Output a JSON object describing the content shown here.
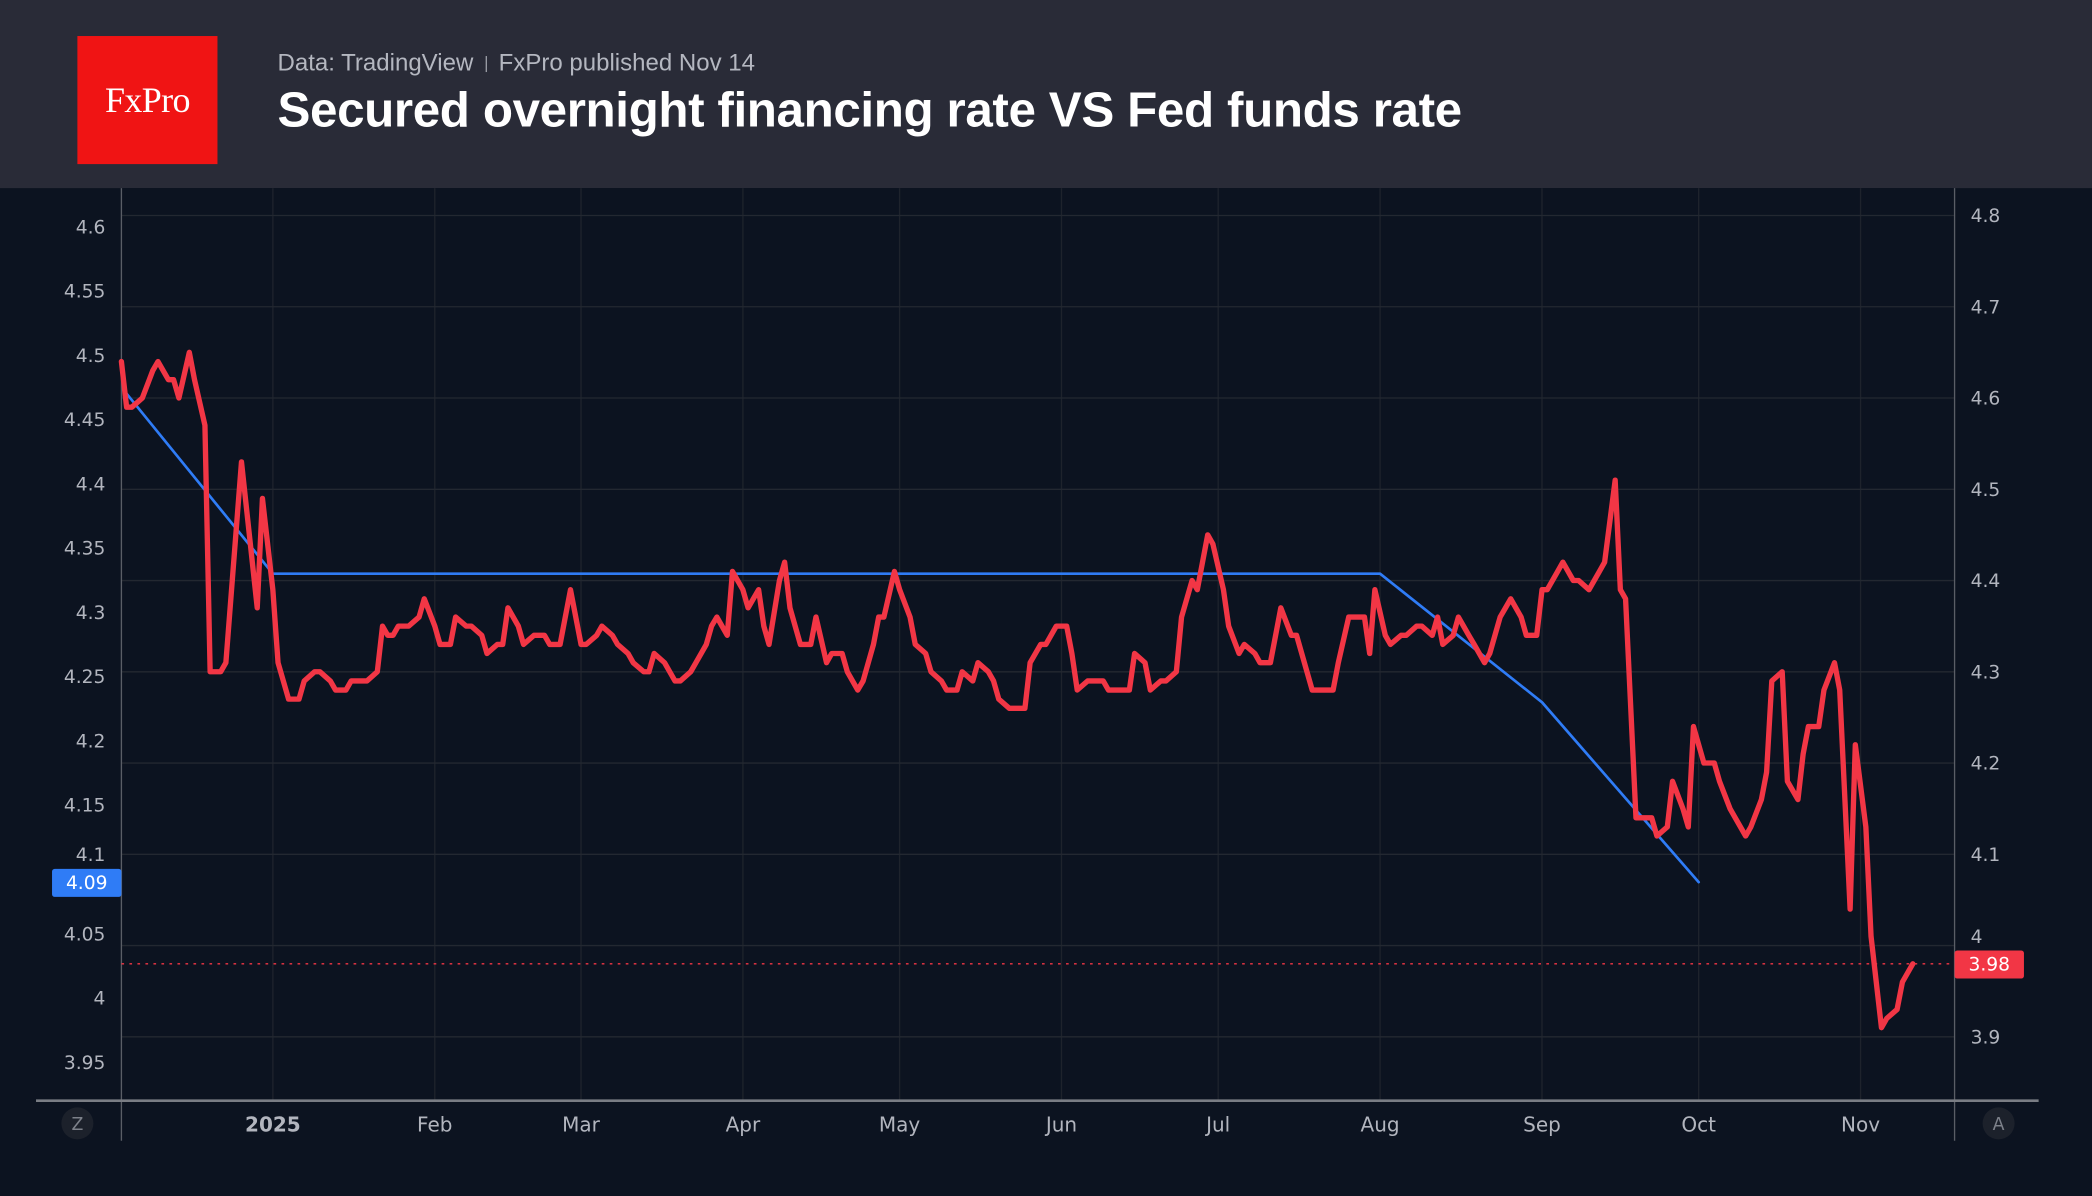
{
  "header": {
    "logo_text": "FxPro",
    "source": "Data: TradingView",
    "publisher": "FxPro published Nov 14",
    "title": "Secured overnight financing rate VS Fed funds rate"
  },
  "controls": {
    "left_button": "Z",
    "right_button": "A"
  },
  "chart_data": {
    "type": "line",
    "title": "Secured overnight financing rate VS Fed funds rate",
    "grid": true,
    "legend": "none",
    "xlim": [
      "2024-12-03",
      "2025-11-19"
    ],
    "x_ticks": [
      {
        "date": "2025-01-01",
        "label": "2025",
        "bold": true
      },
      {
        "date": "2025-02-01",
        "label": "Feb"
      },
      {
        "date": "2025-03-01",
        "label": "Mar"
      },
      {
        "date": "2025-04-01",
        "label": "Apr"
      },
      {
        "date": "2025-05-01",
        "label": "May"
      },
      {
        "date": "2025-06-01",
        "label": "Jun"
      },
      {
        "date": "2025-07-01",
        "label": "Jul"
      },
      {
        "date": "2025-08-01",
        "label": "Aug"
      },
      {
        "date": "2025-09-01",
        "label": "Sep"
      },
      {
        "date": "2025-10-01",
        "label": "Oct"
      },
      {
        "date": "2025-11-01",
        "label": "Nov"
      }
    ],
    "left_axis": {
      "range": [
        3.92,
        4.63
      ],
      "ticks": [
        "4.6",
        "4.55",
        "4.5",
        "4.45",
        "4.4",
        "4.35",
        "4.3",
        "4.25",
        "4.2",
        "4.15",
        "4.1",
        "4.05",
        "4",
        "3.95"
      ]
    },
    "right_axis": {
      "range": [
        3.83,
        4.83
      ],
      "ticks": [
        "4.8",
        "4.7",
        "4.6",
        "4.5",
        "4.4",
        "4.3",
        "4.2",
        "4.1",
        "4",
        "3.9"
      ]
    },
    "series": [
      {
        "axis": "left",
        "color": "#2f7cf6",
        "last_value_label": "4.09",
        "last_value": 4.09,
        "points": [
          [
            "2024-12-04",
            4.47
          ],
          [
            "2025-01-01",
            4.33
          ],
          [
            "2025-08-01",
            4.33
          ],
          [
            "2025-09-01",
            4.23
          ],
          [
            "2025-10-01",
            4.09
          ]
        ]
      },
      {
        "axis": "right",
        "color": "#f23645",
        "last_value_label": "3.98",
        "last_value": 3.98,
        "points": [
          [
            "2024-12-03",
            4.64
          ],
          [
            "2024-12-04",
            4.59
          ],
          [
            "2024-12-05",
            4.59
          ],
          [
            "2024-12-07",
            4.6
          ],
          [
            "2024-12-09",
            4.63
          ],
          [
            "2024-12-10",
            4.64
          ],
          [
            "2024-12-12",
            4.62
          ],
          [
            "2024-12-13",
            4.62
          ],
          [
            "2024-12-14",
            4.6
          ],
          [
            "2024-12-16",
            4.65
          ],
          [
            "2024-12-17",
            4.62
          ],
          [
            "2024-12-19",
            4.57
          ],
          [
            "2024-12-20",
            4.3
          ],
          [
            "2024-12-22",
            4.3
          ],
          [
            "2024-12-23",
            4.31
          ],
          [
            "2024-12-26",
            4.53
          ],
          [
            "2024-12-29",
            4.37
          ],
          [
            "2024-12-30",
            4.49
          ],
          [
            "2025-01-01",
            4.39
          ],
          [
            "2025-01-02",
            4.31
          ],
          [
            "2025-01-04",
            4.27
          ],
          [
            "2025-01-06",
            4.27
          ],
          [
            "2025-01-07",
            4.29
          ],
          [
            "2025-01-09",
            4.3
          ],
          [
            "2025-01-10",
            4.3
          ],
          [
            "2025-01-12",
            4.29
          ],
          [
            "2025-01-13",
            4.28
          ],
          [
            "2025-01-15",
            4.28
          ],
          [
            "2025-01-16",
            4.29
          ],
          [
            "2025-01-18",
            4.29
          ],
          [
            "2025-01-19",
            4.29
          ],
          [
            "2025-01-21",
            4.3
          ],
          [
            "2025-01-22",
            4.35
          ],
          [
            "2025-01-23",
            4.34
          ],
          [
            "2025-01-24",
            4.34
          ],
          [
            "2025-01-25",
            4.35
          ],
          [
            "2025-01-27",
            4.35
          ],
          [
            "2025-01-29",
            4.36
          ],
          [
            "2025-01-30",
            4.38
          ],
          [
            "2025-02-01",
            4.35
          ],
          [
            "2025-02-02",
            4.33
          ],
          [
            "2025-02-04",
            4.33
          ],
          [
            "2025-02-05",
            4.36
          ],
          [
            "2025-02-07",
            4.35
          ],
          [
            "2025-02-08",
            4.35
          ],
          [
            "2025-02-10",
            4.34
          ],
          [
            "2025-02-11",
            4.32
          ],
          [
            "2025-02-13",
            4.33
          ],
          [
            "2025-02-14",
            4.33
          ],
          [
            "2025-02-15",
            4.37
          ],
          [
            "2025-02-17",
            4.35
          ],
          [
            "2025-02-18",
            4.33
          ],
          [
            "2025-02-20",
            4.34
          ],
          [
            "2025-02-22",
            4.34
          ],
          [
            "2025-02-23",
            4.33
          ],
          [
            "2025-02-25",
            4.33
          ],
          [
            "2025-02-26",
            4.36
          ],
          [
            "2025-02-27",
            4.39
          ],
          [
            "2025-03-01",
            4.33
          ],
          [
            "2025-03-02",
            4.33
          ],
          [
            "2025-03-04",
            4.34
          ],
          [
            "2025-03-05",
            4.35
          ],
          [
            "2025-03-07",
            4.34
          ],
          [
            "2025-03-08",
            4.33
          ],
          [
            "2025-03-10",
            4.32
          ],
          [
            "2025-03-11",
            4.31
          ],
          [
            "2025-03-13",
            4.3
          ],
          [
            "2025-03-14",
            4.3
          ],
          [
            "2025-03-15",
            4.32
          ],
          [
            "2025-03-17",
            4.31
          ],
          [
            "2025-03-19",
            4.29
          ],
          [
            "2025-03-20",
            4.29
          ],
          [
            "2025-03-22",
            4.3
          ],
          [
            "2025-03-23",
            4.31
          ],
          [
            "2025-03-25",
            4.33
          ],
          [
            "2025-03-26",
            4.35
          ],
          [
            "2025-03-27",
            4.36
          ],
          [
            "2025-03-29",
            4.34
          ],
          [
            "2025-03-30",
            4.41
          ],
          [
            "2025-04-01",
            4.39
          ],
          [
            "2025-04-02",
            4.37
          ],
          [
            "2025-04-04",
            4.39
          ],
          [
            "2025-04-05",
            4.35
          ],
          [
            "2025-04-06",
            4.33
          ],
          [
            "2025-04-08",
            4.4
          ],
          [
            "2025-04-09",
            4.42
          ],
          [
            "2025-04-10",
            4.37
          ],
          [
            "2025-04-12",
            4.33
          ],
          [
            "2025-04-14",
            4.33
          ],
          [
            "2025-04-15",
            4.36
          ],
          [
            "2025-04-17",
            4.31
          ],
          [
            "2025-04-18",
            4.32
          ],
          [
            "2025-04-20",
            4.32
          ],
          [
            "2025-04-21",
            4.3
          ],
          [
            "2025-04-23",
            4.28
          ],
          [
            "2025-04-24",
            4.29
          ],
          [
            "2025-04-26",
            4.33
          ],
          [
            "2025-04-27",
            4.36
          ],
          [
            "2025-04-28",
            4.36
          ],
          [
            "2025-04-30",
            4.41
          ],
          [
            "2025-05-01",
            4.39
          ],
          [
            "2025-05-03",
            4.36
          ],
          [
            "2025-05-04",
            4.33
          ],
          [
            "2025-05-06",
            4.32
          ],
          [
            "2025-05-07",
            4.3
          ],
          [
            "2025-05-09",
            4.29
          ],
          [
            "2025-05-10",
            4.28
          ],
          [
            "2025-05-12",
            4.28
          ],
          [
            "2025-05-13",
            4.3
          ],
          [
            "2025-05-15",
            4.29
          ],
          [
            "2025-05-16",
            4.31
          ],
          [
            "2025-05-18",
            4.3
          ],
          [
            "2025-05-19",
            4.29
          ],
          [
            "2025-05-20",
            4.27
          ],
          [
            "2025-05-22",
            4.26
          ],
          [
            "2025-05-23",
            4.26
          ],
          [
            "2025-05-25",
            4.26
          ],
          [
            "2025-05-26",
            4.31
          ],
          [
            "2025-05-28",
            4.33
          ],
          [
            "2025-05-29",
            4.33
          ],
          [
            "2025-05-31",
            4.35
          ],
          [
            "2025-06-02",
            4.35
          ],
          [
            "2025-06-03",
            4.32
          ],
          [
            "2025-06-04",
            4.28
          ],
          [
            "2025-06-06",
            4.29
          ],
          [
            "2025-06-07",
            4.29
          ],
          [
            "2025-06-09",
            4.29
          ],
          [
            "2025-06-10",
            4.28
          ],
          [
            "2025-06-12",
            4.28
          ],
          [
            "2025-06-14",
            4.28
          ],
          [
            "2025-06-15",
            4.32
          ],
          [
            "2025-06-17",
            4.31
          ],
          [
            "2025-06-18",
            4.28
          ],
          [
            "2025-06-20",
            4.29
          ],
          [
            "2025-06-21",
            4.29
          ],
          [
            "2025-06-23",
            4.3
          ],
          [
            "2025-06-24",
            4.36
          ],
          [
            "2025-06-26",
            4.4
          ],
          [
            "2025-06-27",
            4.39
          ],
          [
            "2025-06-29",
            4.45
          ],
          [
            "2025-06-30",
            4.44
          ],
          [
            "2025-07-02",
            4.39
          ],
          [
            "2025-07-03",
            4.35
          ],
          [
            "2025-07-05",
            4.32
          ],
          [
            "2025-07-06",
            4.33
          ],
          [
            "2025-07-08",
            4.32
          ],
          [
            "2025-07-09",
            4.31
          ],
          [
            "2025-07-11",
            4.31
          ],
          [
            "2025-07-12",
            4.34
          ],
          [
            "2025-07-13",
            4.37
          ],
          [
            "2025-07-15",
            4.34
          ],
          [
            "2025-07-16",
            4.34
          ],
          [
            "2025-07-18",
            4.3
          ],
          [
            "2025-07-19",
            4.28
          ],
          [
            "2025-07-21",
            4.28
          ],
          [
            "2025-07-23",
            4.28
          ],
          [
            "2025-07-24",
            4.31
          ],
          [
            "2025-07-26",
            4.36
          ],
          [
            "2025-07-27",
            4.36
          ],
          [
            "2025-07-29",
            4.36
          ],
          [
            "2025-07-30",
            4.32
          ],
          [
            "2025-07-31",
            4.39
          ],
          [
            "2025-08-02",
            4.34
          ],
          [
            "2025-08-03",
            4.33
          ],
          [
            "2025-08-05",
            4.34
          ],
          [
            "2025-08-06",
            4.34
          ],
          [
            "2025-08-08",
            4.35
          ],
          [
            "2025-08-09",
            4.35
          ],
          [
            "2025-08-11",
            4.34
          ],
          [
            "2025-08-12",
            4.36
          ],
          [
            "2025-08-13",
            4.33
          ],
          [
            "2025-08-15",
            4.34
          ],
          [
            "2025-08-16",
            4.36
          ],
          [
            "2025-08-18",
            4.34
          ],
          [
            "2025-08-19",
            4.33
          ],
          [
            "2025-08-21",
            4.31
          ],
          [
            "2025-08-22",
            4.32
          ],
          [
            "2025-08-24",
            4.36
          ],
          [
            "2025-08-25",
            4.37
          ],
          [
            "2025-08-26",
            4.38
          ],
          [
            "2025-08-28",
            4.36
          ],
          [
            "2025-08-29",
            4.34
          ],
          [
            "2025-08-31",
            4.34
          ],
          [
            "2025-09-01",
            4.39
          ],
          [
            "2025-09-02",
            4.39
          ],
          [
            "2025-09-04",
            4.41
          ],
          [
            "2025-09-05",
            4.42
          ],
          [
            "2025-09-07",
            4.4
          ],
          [
            "2025-09-08",
            4.4
          ],
          [
            "2025-09-10",
            4.39
          ],
          [
            "2025-09-12",
            4.41
          ],
          [
            "2025-09-13",
            4.42
          ],
          [
            "2025-09-15",
            4.51
          ],
          [
            "2025-09-16",
            4.39
          ],
          [
            "2025-09-17",
            4.38
          ],
          [
            "2025-09-19",
            4.14
          ],
          [
            "2025-09-20",
            4.14
          ],
          [
            "2025-09-22",
            4.14
          ],
          [
            "2025-09-23",
            4.12
          ],
          [
            "2025-09-25",
            4.13
          ],
          [
            "2025-09-26",
            4.18
          ],
          [
            "2025-09-28",
            4.15
          ],
          [
            "2025-09-29",
            4.13
          ],
          [
            "2025-09-30",
            4.24
          ],
          [
            "2025-10-02",
            4.2
          ],
          [
            "2025-10-04",
            4.2
          ],
          [
            "2025-10-05",
            4.18
          ],
          [
            "2025-10-07",
            4.15
          ],
          [
            "2025-10-08",
            4.14
          ],
          [
            "2025-10-10",
            4.12
          ],
          [
            "2025-10-11",
            4.13
          ],
          [
            "2025-10-13",
            4.16
          ],
          [
            "2025-10-14",
            4.19
          ],
          [
            "2025-10-15",
            4.29
          ],
          [
            "2025-10-17",
            4.3
          ],
          [
            "2025-10-18",
            4.18
          ],
          [
            "2025-10-20",
            4.16
          ],
          [
            "2025-10-21",
            4.21
          ],
          [
            "2025-10-22",
            4.24
          ],
          [
            "2025-10-24",
            4.24
          ],
          [
            "2025-10-25",
            4.28
          ],
          [
            "2025-10-27",
            4.31
          ],
          [
            "2025-10-28",
            4.28
          ],
          [
            "2025-10-30",
            4.04
          ],
          [
            "2025-10-31",
            4.22
          ],
          [
            "2025-11-02",
            4.13
          ],
          [
            "2025-11-03",
            4.01
          ],
          [
            "2025-11-05",
            3.91
          ],
          [
            "2025-11-06",
            3.92
          ],
          [
            "2025-11-08",
            3.93
          ],
          [
            "2025-11-09",
            3.96
          ],
          [
            "2025-11-11",
            3.98
          ]
        ]
      }
    ]
  }
}
